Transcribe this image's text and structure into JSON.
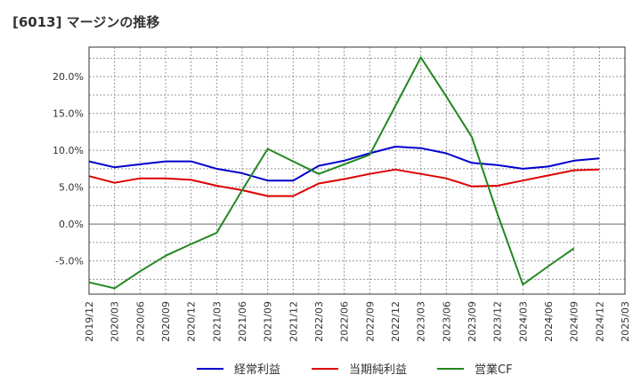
{
  "title": "[6013]  マージンの推移",
  "chart_data": {
    "type": "line",
    "title": "[6013]  マージンの推移",
    "xlabel": "",
    "ylabel": "",
    "x": [
      "2019/12",
      "2020/03",
      "2020/06",
      "2020/09",
      "2020/12",
      "2021/03",
      "2021/06",
      "2021/09",
      "2021/12",
      "2022/03",
      "2022/06",
      "2022/09",
      "2022/12",
      "2023/03",
      "2023/06",
      "2023/09",
      "2023/12",
      "2024/03",
      "2024/06",
      "2024/09",
      "2024/12",
      "2025/03"
    ],
    "ylim": [
      -9.5,
      24.0
    ],
    "yticks": [
      -5,
      0,
      5,
      10,
      15,
      20
    ],
    "ytick_labels": [
      "-5.0%",
      "0.0%",
      "5.0%",
      "10.0%",
      "15.0%",
      "20.0%"
    ],
    "grid": true,
    "legend_position": "bottom",
    "series": [
      {
        "name": "経常利益",
        "color": "#0000cc",
        "values": [
          8.5,
          7.7,
          8.1,
          8.5,
          8.5,
          7.5,
          6.9,
          5.9,
          5.9,
          7.9,
          8.6,
          9.6,
          10.5,
          10.3,
          9.6,
          8.3,
          8.0,
          7.5,
          7.8,
          8.6,
          8.9,
          null
        ]
      },
      {
        "name": "当期純利益",
        "color": "#dd0000",
        "values": [
          6.5,
          5.6,
          6.2,
          6.2,
          6.0,
          5.2,
          4.6,
          3.8,
          3.8,
          5.5,
          6.1,
          6.8,
          7.4,
          6.8,
          6.2,
          5.1,
          5.2,
          5.9,
          6.6,
          7.3,
          7.4,
          null
        ]
      },
      {
        "name": "営業CF",
        "color": "#228822",
        "values": [
          -7.9,
          -8.7,
          -6.4,
          -4.3,
          -2.7,
          -1.2,
          4.6,
          10.2,
          8.5,
          6.8,
          8.1,
          9.4,
          16.0,
          22.6,
          17.3,
          11.8,
          1.4,
          -8.2,
          -5.7,
          -3.3,
          null,
          null
        ]
      }
    ]
  }
}
